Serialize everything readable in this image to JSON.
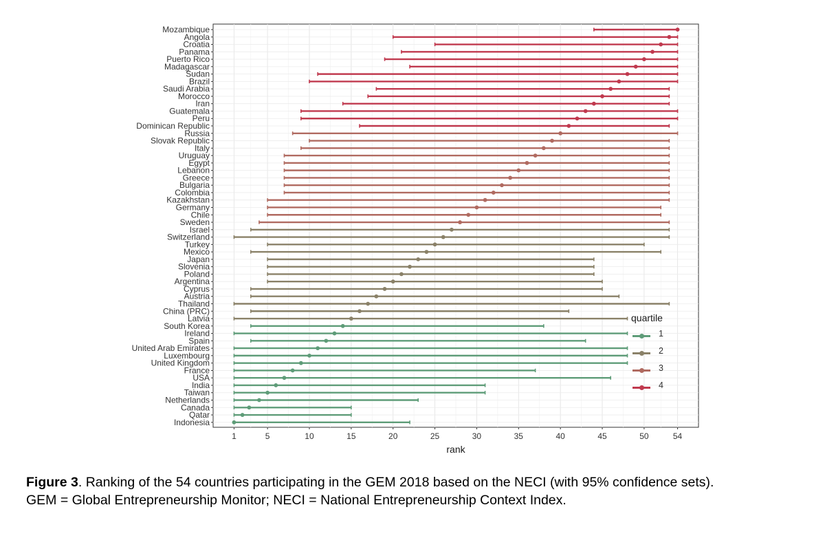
{
  "chart_data": {
    "type": "dot-interval",
    "xlabel": "rank",
    "xlim": [
      -1.5,
      56.5
    ],
    "xticks": [
      1,
      5,
      10,
      15,
      20,
      25,
      30,
      35,
      40,
      45,
      50,
      54
    ],
    "grid": true,
    "legend": {
      "title": "quartile",
      "placement": "right",
      "entries": [
        {
          "label": "1",
          "color": "#5e9c78"
        },
        {
          "label": "2",
          "color": "#8a8168"
        },
        {
          "label": "3",
          "color": "#b06a60"
        },
        {
          "label": "4",
          "color": "#c0394e"
        }
      ]
    },
    "rows": [
      {
        "country": "Mozambique",
        "rank": 54,
        "lower": 44,
        "upper": 54,
        "quartile": 4
      },
      {
        "country": "Angola",
        "rank": 53,
        "lower": 20,
        "upper": 54,
        "quartile": 4
      },
      {
        "country": "Croatia",
        "rank": 52,
        "lower": 25,
        "upper": 54,
        "quartile": 4
      },
      {
        "country": "Panama",
        "rank": 51,
        "lower": 21,
        "upper": 54,
        "quartile": 4
      },
      {
        "country": "Puerto Rico",
        "rank": 50,
        "lower": 19,
        "upper": 54,
        "quartile": 4
      },
      {
        "country": "Madagascar",
        "rank": 49,
        "lower": 22,
        "upper": 54,
        "quartile": 4
      },
      {
        "country": "Sudan",
        "rank": 48,
        "lower": 11,
        "upper": 54,
        "quartile": 4
      },
      {
        "country": "Brazil",
        "rank": 47,
        "lower": 10,
        "upper": 54,
        "quartile": 4
      },
      {
        "country": "Saudi Arabia",
        "rank": 46,
        "lower": 18,
        "upper": 53,
        "quartile": 4
      },
      {
        "country": "Morocco",
        "rank": 45,
        "lower": 17,
        "upper": 53,
        "quartile": 4
      },
      {
        "country": "Iran",
        "rank": 44,
        "lower": 14,
        "upper": 53,
        "quartile": 4
      },
      {
        "country": "Guatemala",
        "rank": 43,
        "lower": 9,
        "upper": 54,
        "quartile": 4
      },
      {
        "country": "Peru",
        "rank": 42,
        "lower": 9,
        "upper": 54,
        "quartile": 4
      },
      {
        "country": "Dominican Republic",
        "rank": 41,
        "lower": 16,
        "upper": 53,
        "quartile": 4
      },
      {
        "country": "Russia",
        "rank": 40,
        "lower": 8,
        "upper": 54,
        "quartile": 3
      },
      {
        "country": "Slovak Republic",
        "rank": 39,
        "lower": 10,
        "upper": 53,
        "quartile": 3
      },
      {
        "country": "Italy",
        "rank": 38,
        "lower": 9,
        "upper": 53,
        "quartile": 3
      },
      {
        "country": "Uruguay",
        "rank": 37,
        "lower": 7,
        "upper": 53,
        "quartile": 3
      },
      {
        "country": "Egypt",
        "rank": 36,
        "lower": 7,
        "upper": 53,
        "quartile": 3
      },
      {
        "country": "Lebanon",
        "rank": 35,
        "lower": 7,
        "upper": 53,
        "quartile": 3
      },
      {
        "country": "Greece",
        "rank": 34,
        "lower": 7,
        "upper": 53,
        "quartile": 3
      },
      {
        "country": "Bulgaria",
        "rank": 33,
        "lower": 7,
        "upper": 53,
        "quartile": 3
      },
      {
        "country": "Colombia",
        "rank": 32,
        "lower": 7,
        "upper": 53,
        "quartile": 3
      },
      {
        "country": "Kazakhstan",
        "rank": 31,
        "lower": 5,
        "upper": 53,
        "quartile": 3
      },
      {
        "country": "Germany",
        "rank": 30,
        "lower": 5,
        "upper": 52,
        "quartile": 3
      },
      {
        "country": "Chile",
        "rank": 29,
        "lower": 5,
        "upper": 52,
        "quartile": 3
      },
      {
        "country": "Sweden",
        "rank": 28,
        "lower": 4,
        "upper": 53,
        "quartile": 3
      },
      {
        "country": "Israel",
        "rank": 27,
        "lower": 3,
        "upper": 53,
        "quartile": 2
      },
      {
        "country": "Switzerland",
        "rank": 26,
        "lower": 1,
        "upper": 53,
        "quartile": 2
      },
      {
        "country": "Turkey",
        "rank": 25,
        "lower": 5,
        "upper": 50,
        "quartile": 2
      },
      {
        "country": "Mexico",
        "rank": 24,
        "lower": 3,
        "upper": 52,
        "quartile": 2
      },
      {
        "country": "Japan",
        "rank": 23,
        "lower": 5,
        "upper": 44,
        "quartile": 2
      },
      {
        "country": "Slovenia",
        "rank": 22,
        "lower": 5,
        "upper": 44,
        "quartile": 2
      },
      {
        "country": "Poland",
        "rank": 21,
        "lower": 5,
        "upper": 44,
        "quartile": 2
      },
      {
        "country": "Argentina",
        "rank": 20,
        "lower": 5,
        "upper": 45,
        "quartile": 2
      },
      {
        "country": "Cyprus",
        "rank": 19,
        "lower": 3,
        "upper": 45,
        "quartile": 2
      },
      {
        "country": "Austria",
        "rank": 18,
        "lower": 3,
        "upper": 47,
        "quartile": 2
      },
      {
        "country": "Thailand",
        "rank": 17,
        "lower": 1,
        "upper": 53,
        "quartile": 2
      },
      {
        "country": "China (PRC)",
        "rank": 16,
        "lower": 3,
        "upper": 41,
        "quartile": 2
      },
      {
        "country": "Latvia",
        "rank": 15,
        "lower": 1,
        "upper": 48,
        "quartile": 2
      },
      {
        "country": "South Korea",
        "rank": 14,
        "lower": 3,
        "upper": 38,
        "quartile": 1
      },
      {
        "country": "Ireland",
        "rank": 13,
        "lower": 1,
        "upper": 48,
        "quartile": 1
      },
      {
        "country": "Spain",
        "rank": 12,
        "lower": 3,
        "upper": 43,
        "quartile": 1
      },
      {
        "country": "United Arab Emirates",
        "rank": 11,
        "lower": 1,
        "upper": 48,
        "quartile": 1
      },
      {
        "country": "Luxembourg",
        "rank": 10,
        "lower": 1,
        "upper": 48,
        "quartile": 1
      },
      {
        "country": "United Kingdom",
        "rank": 9,
        "lower": 1,
        "upper": 48,
        "quartile": 1
      },
      {
        "country": "France",
        "rank": 8,
        "lower": 1,
        "upper": 37,
        "quartile": 1
      },
      {
        "country": "USA",
        "rank": 7,
        "lower": 1,
        "upper": 46,
        "quartile": 1
      },
      {
        "country": "India",
        "rank": 6,
        "lower": 1,
        "upper": 31,
        "quartile": 1
      },
      {
        "country": "Taiwan",
        "rank": 5,
        "lower": 1,
        "upper": 31,
        "quartile": 1
      },
      {
        "country": "Netherlands",
        "rank": 4,
        "lower": 1,
        "upper": 23,
        "quartile": 1
      },
      {
        "country": "Canada",
        "rank": 2.8,
        "lower": 1,
        "upper": 15,
        "quartile": 1
      },
      {
        "country": "Qatar",
        "rank": 2,
        "lower": 1,
        "upper": 15,
        "quartile": 1
      },
      {
        "country": "Indonesia",
        "rank": 1,
        "lower": 1,
        "upper": 22,
        "quartile": 1
      }
    ]
  },
  "caption": {
    "figure_number": "Figure 3",
    "main_text": ". Ranking of the 54 countries participating in the GEM 2018 based on the NECI (with 95% confidence sets).",
    "note_text": "GEM = Global Entrepreneurship Monitor; NECI = National Entrepreneurship Context Index."
  }
}
